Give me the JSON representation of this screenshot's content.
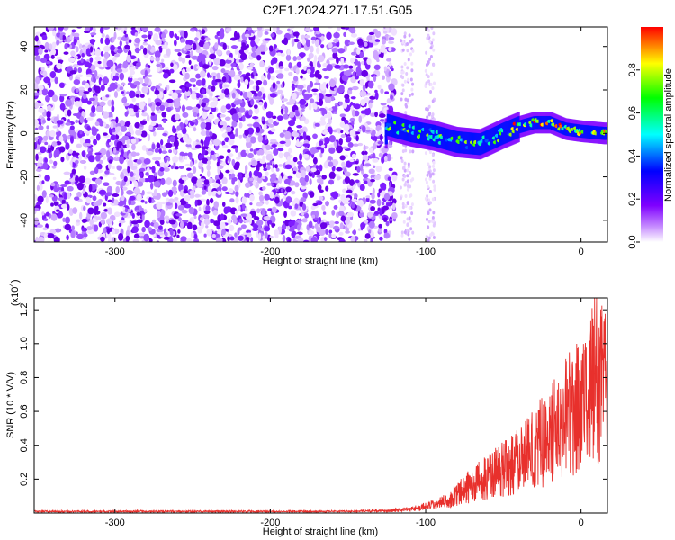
{
  "figure": {
    "title": "C2E1.2024.271.17.51.G05"
  },
  "chart_data": [
    {
      "type": "heatmap",
      "title": "C2E1.2024.271.17.51.G05",
      "xlabel": "Height of straight line (km)",
      "ylabel": "Frequency (Hz)",
      "xlim": [
        -352,
        17
      ],
      "ylim": [
        -50,
        49
      ],
      "xticks": [
        -300,
        -200,
        -100,
        0
      ],
      "yticks": [
        -40,
        -20,
        0,
        20,
        40
      ],
      "colorbar": {
        "label": "Normalized spectral amplitude",
        "range": [
          0,
          1
        ],
        "ticks": [
          0.0,
          0.2,
          0.4,
          0.6,
          0.8
        ],
        "colormap": [
          "#ffffff",
          "#7f00ff",
          "#0000ff",
          "#00ffff",
          "#00ff00",
          "#ffff00",
          "#ff0000"
        ]
      },
      "signal_track": [
        {
          "x": -125,
          "y": 4
        },
        {
          "x": -110,
          "y": 1
        },
        {
          "x": -95,
          "y": -1
        },
        {
          "x": -80,
          "y": -4
        },
        {
          "x": -65,
          "y": -5
        },
        {
          "x": -50,
          "y": 0
        },
        {
          "x": -40,
          "y": 3
        },
        {
          "x": -30,
          "y": 5
        },
        {
          "x": -20,
          "y": 5
        },
        {
          "x": -10,
          "y": 2
        },
        {
          "x": 0,
          "y": 1
        },
        {
          "x": 15,
          "y": 0
        }
      ],
      "noise_region_x": [
        -352,
        -125
      ]
    },
    {
      "type": "line",
      "xlabel": "Height of straight line (km)",
      "ylabel": "SNR (10 * V/V)",
      "multiplier_label": "(x10",
      "multiplier_exp": "4",
      "multiplier_close": ")",
      "xlim": [
        -352,
        17
      ],
      "ylim": [
        0,
        1.27
      ],
      "xticks": [
        -300,
        -200,
        -100,
        0
      ],
      "yticks": [
        0.2,
        0.4,
        0.6,
        0.8,
        1.0,
        1.2
      ],
      "line_color": "#e8302c",
      "envelope": [
        {
          "x": -352,
          "y": 0.01
        },
        {
          "x": -150,
          "y": 0.01
        },
        {
          "x": -125,
          "y": 0.015
        },
        {
          "x": -110,
          "y": 0.03
        },
        {
          "x": -100,
          "y": 0.05
        },
        {
          "x": -85,
          "y": 0.1
        },
        {
          "x": -75,
          "y": 0.2
        },
        {
          "x": -60,
          "y": 0.3
        },
        {
          "x": -45,
          "y": 0.4
        },
        {
          "x": -30,
          "y": 0.55
        },
        {
          "x": -20,
          "y": 0.65
        },
        {
          "x": -10,
          "y": 0.8
        },
        {
          "x": 0,
          "y": 0.9
        },
        {
          "x": 8,
          "y": 1.1
        },
        {
          "x": 12,
          "y": 1.15
        },
        {
          "x": 17,
          "y": 1.05
        }
      ]
    }
  ]
}
